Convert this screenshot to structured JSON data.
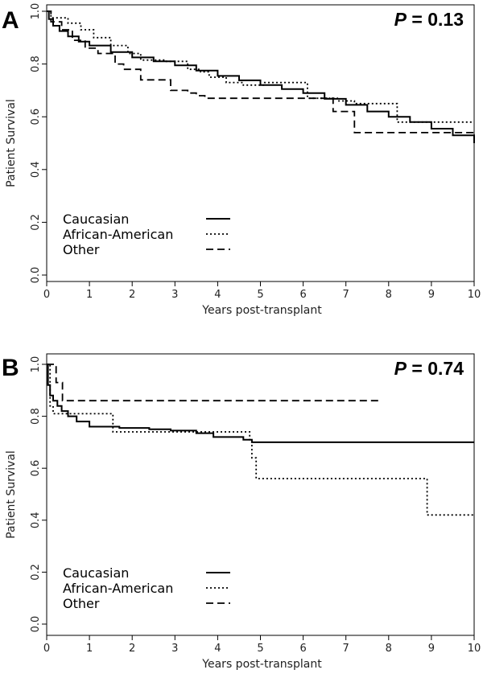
{
  "panels": [
    {
      "letter": "A",
      "pvalue": "P = 0.13",
      "pvalue_italic": "P",
      "pvalue_rest": " = 0.13"
    },
    {
      "letter": "B",
      "pvalue": "P = 0.74",
      "pvalue_italic": "P",
      "pvalue_rest": " = 0.74"
    }
  ],
  "chart_data": [
    {
      "type": "line",
      "step": true,
      "title": "",
      "xlabel": "Years post-transplant",
      "ylabel": "Patient Survival",
      "xlim": [
        0,
        10
      ],
      "ylim": [
        0,
        1
      ],
      "xticks": [
        "0",
        "1",
        "2",
        "3",
        "4",
        "5",
        "6",
        "7",
        "8",
        "9",
        "10"
      ],
      "yticks": [
        "0.0",
        "0.2",
        "0.4",
        "0.6",
        "0.8",
        "1.0"
      ],
      "annotation": "P = 0.13",
      "legend": {
        "placement": "bottom-left"
      },
      "series": [
        {
          "name": "Caucasian",
          "style": "solid",
          "points": [
            [
              0,
              1.0
            ],
            [
              0.05,
              0.97
            ],
            [
              0.15,
              0.945
            ],
            [
              0.3,
              0.925
            ],
            [
              0.5,
              0.905
            ],
            [
              0.75,
              0.885
            ],
            [
              1,
              0.87
            ],
            [
              1.5,
              0.845
            ],
            [
              2,
              0.825
            ],
            [
              2.5,
              0.81
            ],
            [
              3,
              0.795
            ],
            [
              3.5,
              0.775
            ],
            [
              4,
              0.755
            ],
            [
              4.5,
              0.738
            ],
            [
              5,
              0.72
            ],
            [
              5.5,
              0.705
            ],
            [
              6,
              0.69
            ],
            [
              6.5,
              0.668
            ],
            [
              7,
              0.645
            ],
            [
              7.5,
              0.62
            ],
            [
              8,
              0.6
            ],
            [
              8.5,
              0.58
            ],
            [
              9,
              0.555
            ],
            [
              9.5,
              0.53
            ],
            [
              10,
              0.5
            ]
          ]
        },
        {
          "name": "African-American",
          "style": "dotted",
          "points": [
            [
              0,
              1.0
            ],
            [
              0.1,
              0.975
            ],
            [
              0.5,
              0.955
            ],
            [
              0.8,
              0.93
            ],
            [
              1.1,
              0.9
            ],
            [
              1.5,
              0.87
            ],
            [
              1.9,
              0.84
            ],
            [
              2.2,
              0.815
            ],
            [
              2.8,
              0.81
            ],
            [
              3.3,
              0.78
            ],
            [
              3.6,
              0.77
            ],
            [
              3.8,
              0.75
            ],
            [
              4.2,
              0.73
            ],
            [
              4.6,
              0.72
            ],
            [
              5.1,
              0.73
            ],
            [
              6.0,
              0.73
            ],
            [
              6.1,
              0.67
            ],
            [
              6.8,
              0.66
            ],
            [
              7.2,
              0.65
            ],
            [
              8.1,
              0.65
            ],
            [
              8.2,
              0.58
            ],
            [
              10,
              0.58
            ]
          ]
        },
        {
          "name": "Other",
          "style": "dashed",
          "points": [
            [
              0,
              1.0
            ],
            [
              0.1,
              0.96
            ],
            [
              0.35,
              0.93
            ],
            [
              0.6,
              0.89
            ],
            [
              0.9,
              0.86
            ],
            [
              1.2,
              0.84
            ],
            [
              1.6,
              0.8
            ],
            [
              1.8,
              0.78
            ],
            [
              2.1,
              0.78
            ],
            [
              2.2,
              0.74
            ],
            [
              2.8,
              0.74
            ],
            [
              2.9,
              0.7
            ],
            [
              3.3,
              0.69
            ],
            [
              3.5,
              0.68
            ],
            [
              3.7,
              0.67
            ],
            [
              6.6,
              0.67
            ],
            [
              6.7,
              0.62
            ],
            [
              7.1,
              0.62
            ],
            [
              7.2,
              0.54
            ],
            [
              10,
              0.54
            ]
          ]
        }
      ]
    },
    {
      "type": "line",
      "step": true,
      "title": "",
      "xlabel": "Years post-transplant",
      "ylabel": "Patient Survival",
      "xlim": [
        0,
        10
      ],
      "ylim": [
        0,
        1
      ],
      "xticks": [
        "0",
        "1",
        "2",
        "3",
        "4",
        "5",
        "6",
        "7",
        "8",
        "9",
        "10"
      ],
      "yticks": [
        "0.0",
        "0.2",
        "0.4",
        "0.6",
        "0.8",
        "1.0"
      ],
      "annotation": "P = 0.74",
      "legend": {
        "placement": "bottom-left"
      },
      "series": [
        {
          "name": "Caucasian",
          "style": "solid",
          "points": [
            [
              0,
              1.0
            ],
            [
              0.03,
              0.92
            ],
            [
              0.08,
              0.88
            ],
            [
              0.15,
              0.86
            ],
            [
              0.25,
              0.84
            ],
            [
              0.35,
              0.82
            ],
            [
              0.5,
              0.8
            ],
            [
              0.7,
              0.78
            ],
            [
              1.0,
              0.76
            ],
            [
              1.7,
              0.755
            ],
            [
              2.4,
              0.75
            ],
            [
              2.9,
              0.745
            ],
            [
              3.5,
              0.735
            ],
            [
              3.9,
              0.72
            ],
            [
              4.6,
              0.71
            ],
            [
              4.8,
              0.7
            ],
            [
              10,
              0.7
            ]
          ]
        },
        {
          "name": "African-American",
          "style": "dotted",
          "points": [
            [
              0,
              1.0
            ],
            [
              0.08,
              0.84
            ],
            [
              0.15,
              0.81
            ],
            [
              1.5,
              0.81
            ],
            [
              1.55,
              0.74
            ],
            [
              4.7,
              0.74
            ],
            [
              4.75,
              0.71
            ],
            [
              4.8,
              0.64
            ],
            [
              4.9,
              0.56
            ],
            [
              8.85,
              0.56
            ],
            [
              8.9,
              0.42
            ],
            [
              10,
              0.42
            ]
          ]
        },
        {
          "name": "Other",
          "style": "dashed",
          "points": [
            [
              0,
              1.0
            ],
            [
              0.2,
              1.0
            ],
            [
              0.22,
              0.93
            ],
            [
              0.35,
              0.93
            ],
            [
              0.37,
              0.86
            ],
            [
              7.85,
              0.86
            ]
          ]
        }
      ]
    }
  ]
}
